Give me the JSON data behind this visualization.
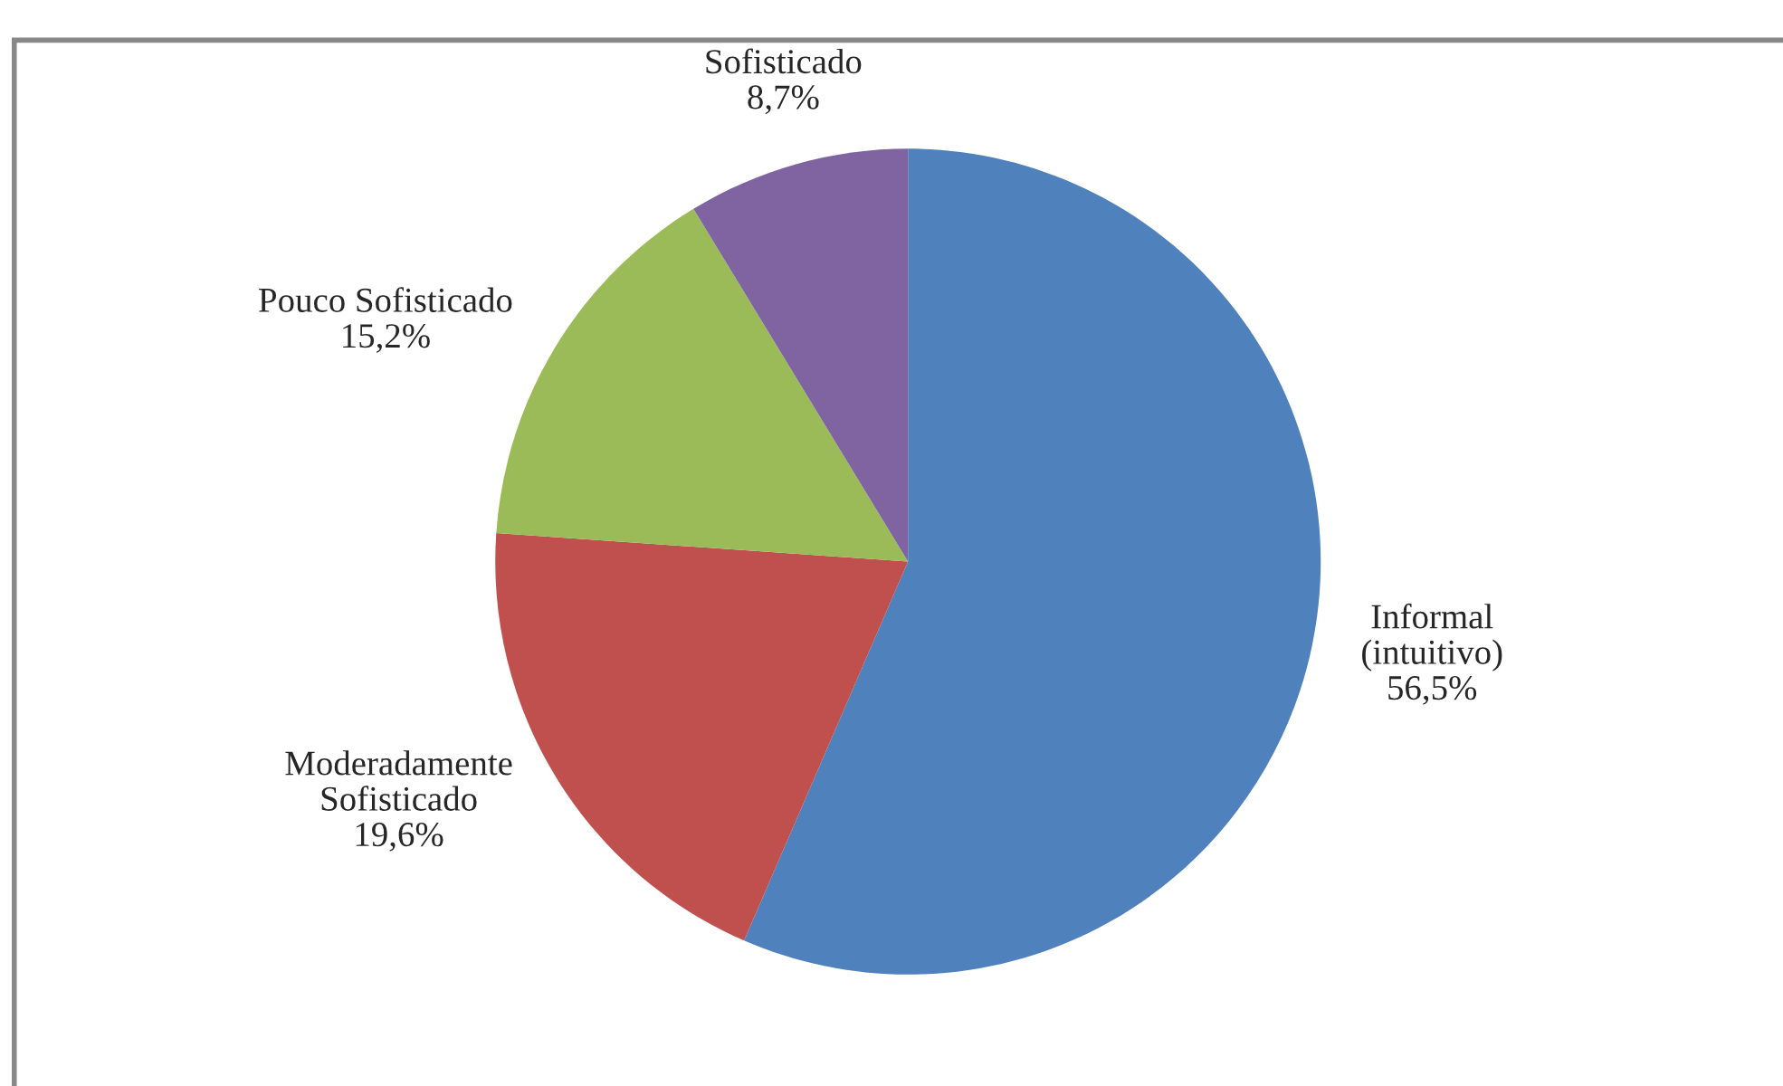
{
  "chart_data": {
    "type": "pie",
    "categories": [
      "Informal\n(intuitivo)",
      "Moderadamente\nSofisticado",
      "Pouco Sofisticado",
      "Sofisticado"
    ],
    "values": [
      56.5,
      19.6,
      15.2,
      8.7
    ],
    "value_labels": [
      "56,5%",
      "19,6%",
      "15,2%",
      "8,7%"
    ],
    "colors": [
      "#4f81bd",
      "#c0504d",
      "#9bbb59",
      "#8064a2"
    ],
    "legend": false
  }
}
